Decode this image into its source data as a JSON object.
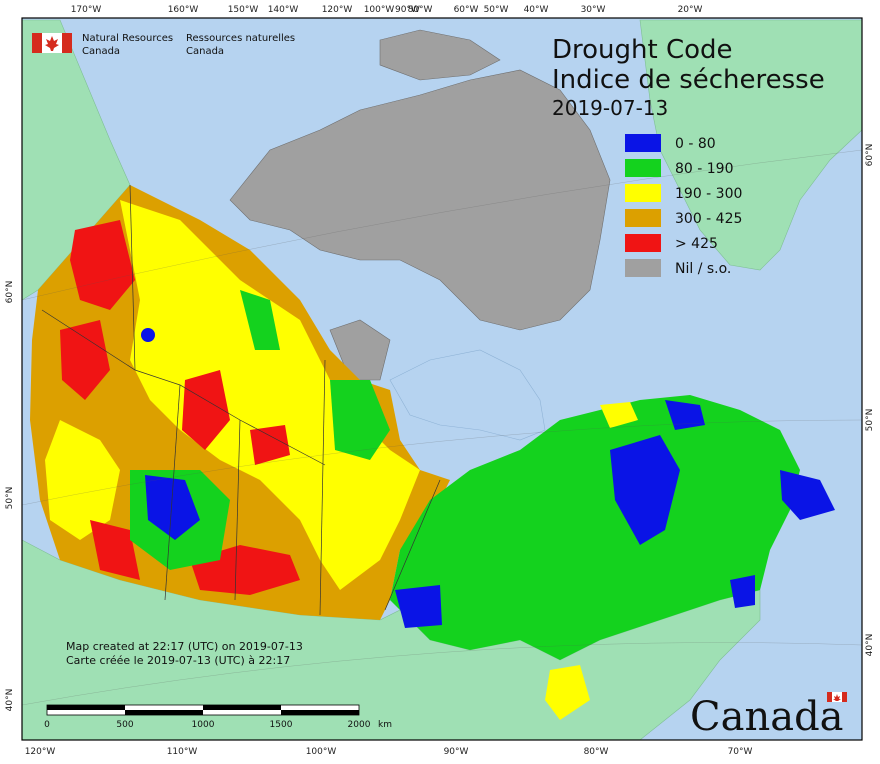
{
  "title": {
    "en": "Drought Code",
    "fr": "Indice de sécheresse",
    "date": "2019-07-13"
  },
  "agency": {
    "en_line1": "Natural Resources",
    "en_line2": "Canada",
    "fr_line1": "Ressources naturelles",
    "fr_line2": "Canada"
  },
  "legend": [
    {
      "label": "0 - 80",
      "color": "#0a14e6"
    },
    {
      "label": "80 - 190",
      "color": "#14d21e"
    },
    {
      "label": "190 - 300",
      "color": "#ffff00"
    },
    {
      "label": "300 - 425",
      "color": "#dca000"
    },
    {
      "label": "> 425",
      "color": "#f01414"
    },
    {
      "label": "Nil / s.o.",
      "color": "#a0a0a0"
    }
  ],
  "credit": {
    "en": "Map created at 22:17 (UTC) on 2019-07-13",
    "fr": "Carte créée le 2019-07-13 (UTC) à 22:17"
  },
  "scale": {
    "ticks": [
      "0",
      "500",
      "1000",
      "1500",
      "2000"
    ],
    "unit": "km"
  },
  "wordmark": "Canada",
  "top_ticks": [
    "170°W",
    "160°W",
    "150°W",
    "140°W",
    "120°W",
    "100°W",
    "90°W",
    "80°W",
    "60°W",
    "50°W",
    "40°W",
    "30°W",
    "20°W"
  ],
  "bottom_ticks": [
    "120°W",
    "110°W",
    "100°W",
    "90°W",
    "80°W",
    "70°W"
  ],
  "left_ticks": [
    "60°N",
    "50°N",
    "40°N"
  ],
  "right_ticks": [
    "60°N",
    "50°N",
    "40°N"
  ],
  "colors": {
    "ocean": "#b6d3f0",
    "land": "#9fe0b4",
    "nil": "#a0a0a0",
    "flag_red": "#d52b1e"
  }
}
